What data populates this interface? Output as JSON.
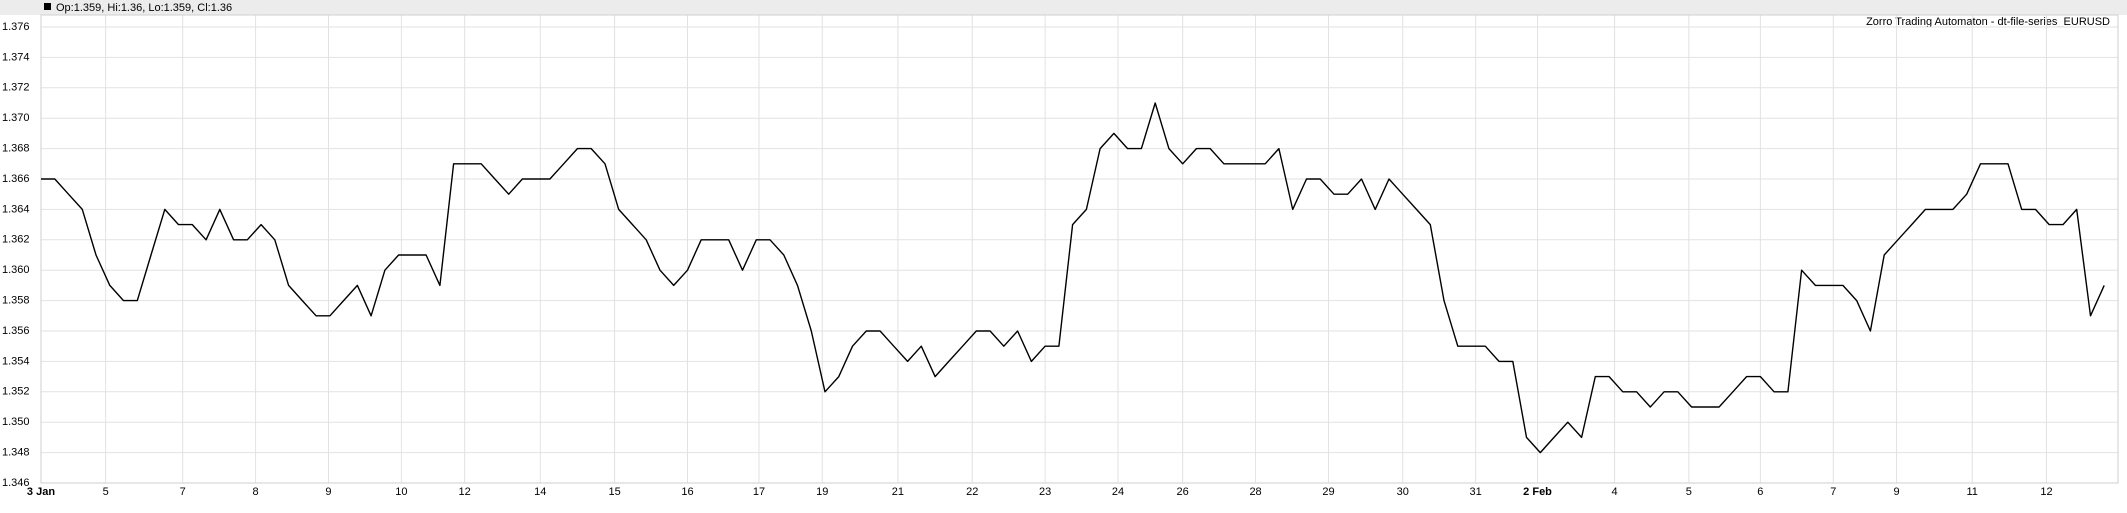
{
  "chart_data": {
    "type": "line",
    "header": "Op:1.359, Hi:1.36, Lo:1.359, Cl:1.36",
    "title": "Zorro Trading Automaton - dt-file-series_EURUSD",
    "series": [
      {
        "name": "EURUSD",
        "color": "#000000",
        "values": [
          1.366,
          1.366,
          1.365,
          1.364,
          1.361,
          1.359,
          1.358,
          1.358,
          1.361,
          1.364,
          1.363,
          1.363,
          1.362,
          1.364,
          1.362,
          1.362,
          1.363,
          1.362,
          1.359,
          1.358,
          1.357,
          1.357,
          1.358,
          1.359,
          1.357,
          1.36,
          1.361,
          1.361,
          1.361,
          1.359,
          1.367,
          1.367,
          1.367,
          1.366,
          1.365,
          1.366,
          1.366,
          1.366,
          1.367,
          1.368,
          1.368,
          1.367,
          1.364,
          1.363,
          1.362,
          1.36,
          1.359,
          1.36,
          1.362,
          1.362,
          1.362,
          1.36,
          1.362,
          1.362,
          1.361,
          1.359,
          1.356,
          1.352,
          1.353,
          1.355,
          1.356,
          1.356,
          1.355,
          1.354,
          1.355,
          1.353,
          1.354,
          1.355,
          1.356,
          1.356,
          1.355,
          1.356,
          1.354,
          1.355,
          1.355,
          1.363,
          1.364,
          1.368,
          1.369,
          1.368,
          1.368,
          1.371,
          1.368,
          1.367,
          1.368,
          1.368,
          1.367,
          1.367,
          1.367,
          1.367,
          1.368,
          1.364,
          1.366,
          1.366,
          1.365,
          1.365,
          1.366,
          1.364,
          1.366,
          1.365,
          1.364,
          1.363,
          1.358,
          1.355,
          1.355,
          1.355,
          1.354,
          1.354,
          1.349,
          1.348,
          1.349,
          1.35,
          1.349,
          1.353,
          1.353,
          1.352,
          1.352,
          1.351,
          1.352,
          1.352,
          1.351,
          1.351,
          1.351,
          1.352,
          1.353,
          1.353,
          1.352,
          1.352,
          1.36,
          1.359,
          1.359,
          1.359,
          1.358,
          1.356,
          1.361,
          1.362,
          1.363,
          1.364,
          1.364,
          1.364,
          1.365,
          1.367,
          1.367,
          1.367,
          1.364,
          1.364,
          1.363,
          1.363,
          1.364,
          1.357,
          1.359
        ]
      }
    ],
    "xlim": [
      0,
      151
    ],
    "xticks": [
      {
        "value": 0,
        "label": "3 Jan"
      },
      {
        "value": 4.7,
        "label": "5"
      },
      {
        "value": 10.3,
        "label": "7"
      },
      {
        "value": 15.6,
        "label": "8"
      },
      {
        "value": 20.9,
        "label": "9"
      },
      {
        "value": 26.2,
        "label": "10"
      },
      {
        "value": 30.8,
        "label": "12"
      },
      {
        "value": 36.3,
        "label": "14"
      },
      {
        "value": 41.7,
        "label": "15"
      },
      {
        "value": 47,
        "label": "16"
      },
      {
        "value": 52.2,
        "label": "17"
      },
      {
        "value": 56.8,
        "label": "19"
      },
      {
        "value": 62.3,
        "label": "21"
      },
      {
        "value": 67.7,
        "label": "22"
      },
      {
        "value": 73,
        "label": "23"
      },
      {
        "value": 78.3,
        "label": "24"
      },
      {
        "value": 83,
        "label": "26"
      },
      {
        "value": 88.3,
        "label": "28"
      },
      {
        "value": 93.6,
        "label": "29"
      },
      {
        "value": 99,
        "label": "30"
      },
      {
        "value": 104.3,
        "label": "31"
      },
      {
        "value": 108.8,
        "label": "2 Feb"
      },
      {
        "value": 114.4,
        "label": "4"
      },
      {
        "value": 119.8,
        "label": "5"
      },
      {
        "value": 125,
        "label": "6"
      },
      {
        "value": 130.3,
        "label": "7"
      },
      {
        "value": 134.9,
        "label": "9"
      },
      {
        "value": 140.4,
        "label": "11"
      },
      {
        "value": 145.8,
        "label": "12"
      }
    ],
    "ylim": [
      1.346,
      1.376
    ],
    "yticks": [
      1.346,
      1.348,
      {
        "value": 1.35,
        "label": "1.350"
      },
      1.352,
      1.354,
      1.356,
      1.358,
      {
        "value": 1.36,
        "label": "1.360"
      },
      1.362,
      1.364,
      1.366,
      1.368,
      {
        "value": 1.37,
        "label": "1.370"
      },
      1.372,
      1.374,
      1.376
    ],
    "grid": true
  }
}
